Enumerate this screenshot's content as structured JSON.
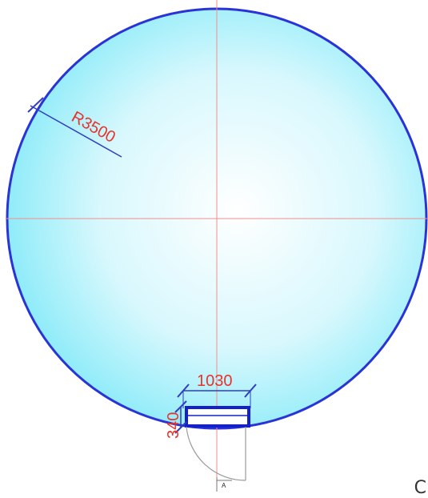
{
  "drawing": {
    "radius_label": "R3500",
    "door_width_label": "1030",
    "door_depth_label": "340",
    "section_marker_label": "A",
    "corner_glyph": "C"
  },
  "colors": {
    "fill_center": "#ffffff",
    "fill_edge": "#7fe9f8",
    "outline": "#2a33d6",
    "centerline": "#ef8f8f",
    "dimension": "#e8322b",
    "dimension_line": "#2f3ec2",
    "door_frame": "#1420c8",
    "door_swing": "#9a9a9a"
  }
}
